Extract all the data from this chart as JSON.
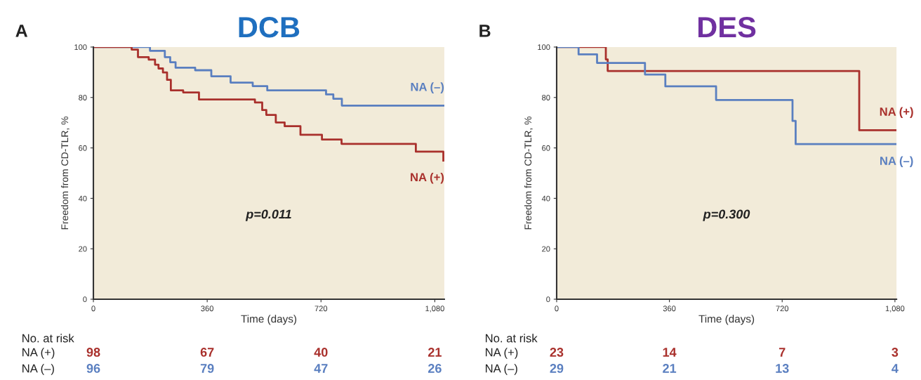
{
  "chart_data": [
    {
      "type": "step",
      "title": "DCB",
      "xlabel": "Time (days)",
      "ylabel": "Freedom from CD-TLR, %",
      "xlim": [
        0,
        1110
      ],
      "ylim": [
        0,
        100
      ],
      "xticks": [
        0,
        360,
        720,
        {
          "value": 1080,
          "label": "1,080"
        }
      ],
      "yticks": [
        0,
        20,
        40,
        60,
        80,
        100
      ],
      "grid": false,
      "legend": false,
      "series": [
        {
          "name": "NA (–)",
          "color": "#5a7fc0",
          "x": [
            0,
            179,
            226,
            243,
            260,
            322,
            373,
            434,
            504,
            550,
            736,
            759,
            786,
            1110
          ],
          "values": [
            100,
            98.5,
            96,
            94,
            91.8,
            90.8,
            88.4,
            85.9,
            84.5,
            82.8,
            81.2,
            79.5,
            76.8,
            76.8
          ]
        },
        {
          "name": "NA (+)",
          "color": "#a9302c",
          "x": [
            0,
            121,
            141,
            175,
            195,
            206,
            220,
            233,
            245,
            284,
            334,
            511,
            534,
            547,
            577,
            605,
            655,
            723,
            785,
            1020,
            1107
          ],
          "values": [
            100,
            99,
            96,
            95,
            93,
            91.5,
            89.9,
            87,
            82.8,
            82,
            79.2,
            78,
            75,
            73.1,
            70.1,
            68.6,
            65.2,
            63.3,
            61.6,
            58.5,
            55
          ]
        }
      ],
      "annotations": [
        "A",
        "p=0.011",
        "No. at risk",
        "NA (+)",
        "NA (–)",
        "98",
        "67",
        "40",
        "21",
        "96",
        "79",
        "47",
        "26"
      ]
    },
    {
      "type": "step",
      "title": "DES",
      "xlabel": "Time (days)",
      "ylabel": "Freedom from CD-TLR, %",
      "xlim": [
        0,
        1085
      ],
      "ylim": [
        0,
        100
      ],
      "xticks": [
        0,
        360,
        720,
        {
          "value": 1080,
          "label": "1,080"
        }
      ],
      "yticks": [
        0,
        20,
        40,
        60,
        80,
        100
      ],
      "grid": false,
      "legend": false,
      "series": [
        {
          "name": "NA (+)",
          "color": "#a9302c",
          "x": [
            0,
            157,
            163,
            966,
            1082
          ],
          "values": [
            100,
            95.1,
            90.5,
            67,
            67
          ]
        },
        {
          "name": "NA (–)",
          "color": "#5a7fc0",
          "x": [
            0,
            70,
            129,
            282,
            347,
            509,
            753,
            763,
            1082
          ],
          "values": [
            100,
            97.1,
            93.7,
            89.1,
            84.4,
            79,
            70.7,
            61.5,
            61.5
          ]
        }
      ],
      "annotations": [
        "B",
        "p=0.300",
        "No. at risk",
        "NA (+)",
        "NA (–)",
        "23",
        "14",
        "7",
        "3",
        "29",
        "21",
        "13",
        "4"
      ]
    }
  ]
}
